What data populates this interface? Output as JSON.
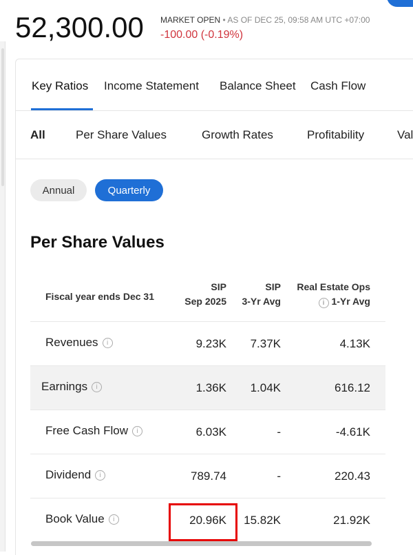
{
  "quote": {
    "price": "52,300.00",
    "market_status": "MARKET OPEN",
    "as_of": " • AS OF DEC 25, 09:58 AM UTC +07:00",
    "change": "-100.00 (-0.19%)"
  },
  "tabs": [
    "Key Ratios",
    "Income Statement",
    "Balance Sheet",
    "Cash Flow"
  ],
  "subtabs": [
    "All",
    "Per Share Values",
    "Growth Rates",
    "Profitability",
    "Val"
  ],
  "period": {
    "annual": "Annual",
    "quarterly": "Quarterly"
  },
  "section_title": "Per Share Values",
  "table": {
    "header": {
      "label": "Fiscal year ends Dec 31",
      "col1": [
        "SIP",
        "Sep 2025"
      ],
      "col2": [
        "SIP",
        "3-Yr Avg"
      ],
      "col3": [
        "Real Estate Ops",
        "1-Yr Avg"
      ]
    },
    "rows": [
      {
        "label": "Revenues",
        "v": [
          "9.23K",
          "7.37K",
          "4.13K"
        ]
      },
      {
        "label": "Earnings",
        "v": [
          "1.36K",
          "1.04K",
          "616.12"
        ]
      },
      {
        "label": "Free Cash Flow",
        "v": [
          "6.03K",
          "-",
          "-4.61K"
        ]
      },
      {
        "label": "Dividend",
        "v": [
          "789.74",
          "-",
          "220.43"
        ]
      },
      {
        "label": "Book Value",
        "v": [
          "20.96K",
          "15.82K",
          "21.92K"
        ]
      }
    ]
  },
  "info_glyph": "i",
  "colors": {
    "accent": "#1f6fd6",
    "negative": "#d0343d",
    "highlight": "#e60000"
  }
}
